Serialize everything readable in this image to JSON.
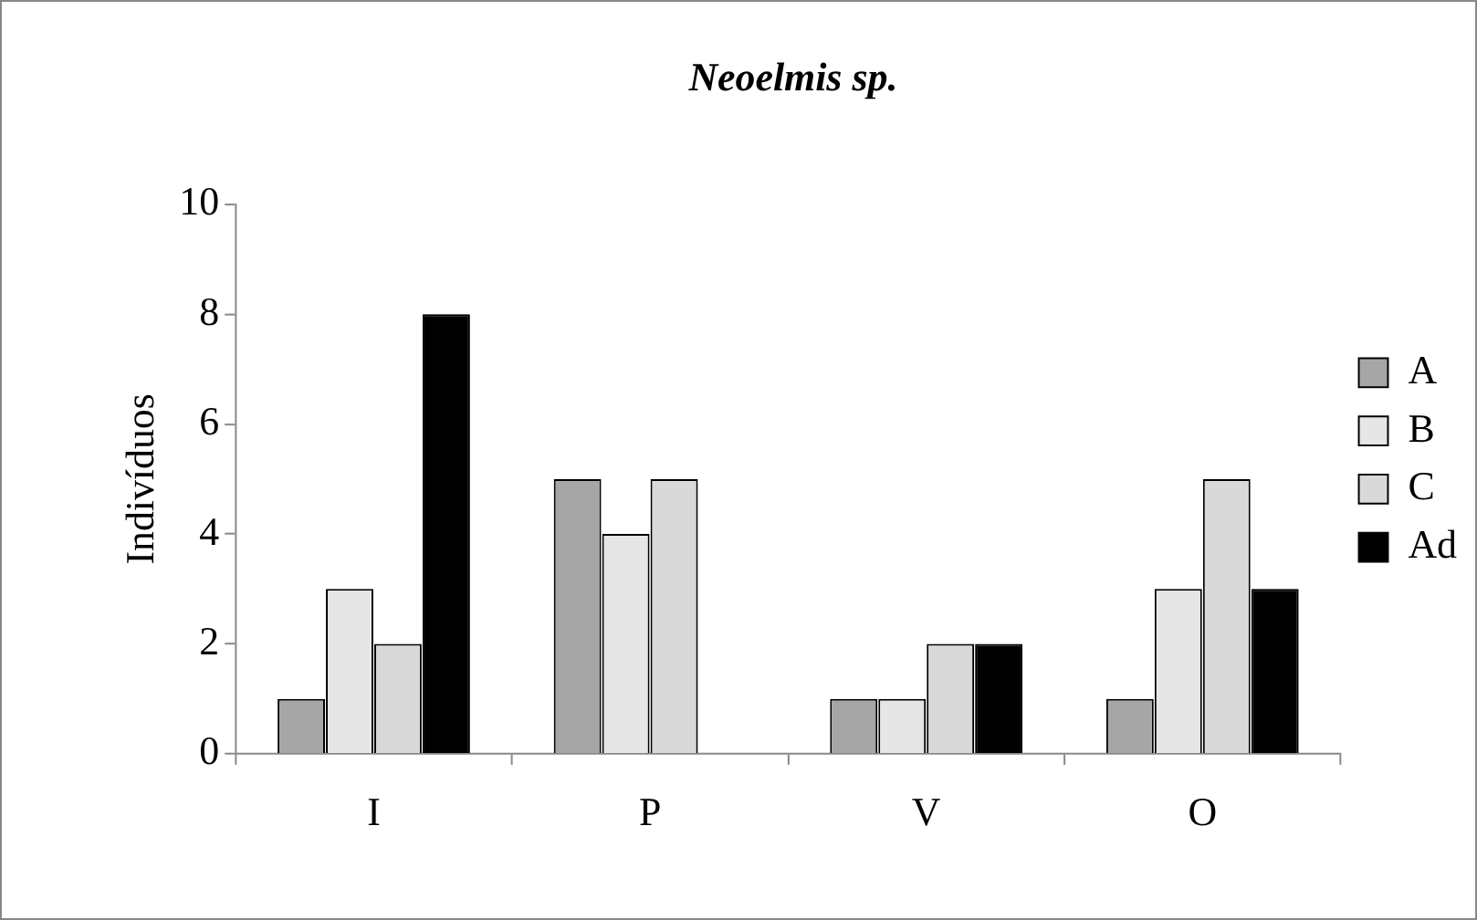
{
  "chart_data": {
    "type": "bar",
    "title": "Neoelmis sp.",
    "ylabel": "Indivíduos",
    "categories": [
      "I",
      "P",
      "V",
      "O"
    ],
    "series": [
      {
        "name": "A",
        "color": "#a6a6a6",
        "values": [
          1,
          5,
          1,
          1
        ]
      },
      {
        "name": "B",
        "color": "#e6e6e6",
        "values": [
          3,
          4,
          1,
          3
        ]
      },
      {
        "name": "C",
        "color": "#d9d9d9",
        "values": [
          2,
          5,
          2,
          5
        ]
      },
      {
        "name": "Ad",
        "color": "#000000",
        "values": [
          8,
          0,
          2,
          3
        ]
      }
    ],
    "ylim": [
      0,
      10
    ],
    "yticks": [
      0,
      2,
      4,
      6,
      8,
      10
    ],
    "grid": false,
    "legend": "right"
  }
}
